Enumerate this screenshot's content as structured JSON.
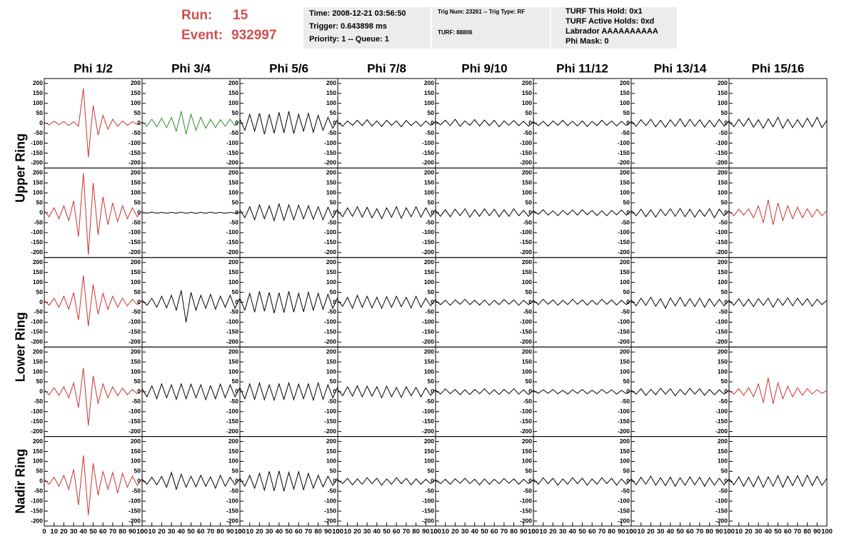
{
  "header": {
    "run_label": "Run:",
    "run": 15,
    "event_label": "Event:",
    "event": 932997
  },
  "info_boxes": [
    [
      "Time: 2008-12-21 03:56:50",
      "Trigger: 0.643898 ms",
      "Priority: 1 -- Queue: 1"
    ],
    [
      "Trig Num: 23261 -- Trig Type: RF",
      "TURF: 88806"
    ],
    [
      "TURF This Hold: 0x1",
      "TURF Active Holds: 0xd",
      "Labrador AAAAAAAAAA",
      "Phi Mask: 0"
    ]
  ],
  "chart_data": {
    "type": "line",
    "columns": [
      "Phi 1/2",
      "Phi 3/4",
      "Phi 5/6",
      "Phi 7/8",
      "Phi 9/10",
      "Phi 11/12",
      "Phi 13/14",
      "Phi 15/16"
    ],
    "row_labels": [
      "Upper Ring",
      "Lower Ring",
      "Nadir Ring"
    ],
    "x": [
      0,
      5,
      10,
      15,
      20,
      25,
      30,
      35,
      40,
      45,
      50,
      55,
      60,
      65,
      70,
      75,
      80,
      85,
      90,
      95,
      100
    ],
    "xlim": [
      0,
      100
    ],
    "xticks": [
      0,
      10,
      20,
      30,
      40,
      50,
      60,
      70,
      80,
      90,
      100
    ],
    "ylim": [
      -225,
      225
    ],
    "yticks": [
      -200,
      -150,
      -100,
      -50,
      0,
      50,
      100,
      150,
      200
    ],
    "panels": [
      [
        {
          "color": "#c8332f",
          "values": [
            5,
            -8,
            10,
            -7,
            9,
            -12,
            8,
            -15,
            175,
            -170,
            90,
            -60,
            40,
            -30,
            20,
            -15,
            12,
            -10,
            8,
            -6,
            5
          ]
        },
        {
          "color": "#2e8b2e",
          "values": [
            10,
            -15,
            20,
            -18,
            25,
            -22,
            30,
            -40,
            60,
            -55,
            45,
            -35,
            30,
            -25,
            20,
            -22,
            18,
            -15,
            20,
            -12,
            10
          ]
        },
        {
          "color": "#000000",
          "values": [
            20,
            -35,
            45,
            -40,
            50,
            -55,
            45,
            -50,
            55,
            -48,
            60,
            -52,
            45,
            -40,
            50,
            -45,
            40,
            -35,
            30,
            -25,
            20
          ]
        },
        {
          "color": "#000000",
          "values": [
            5,
            -15,
            12,
            -10,
            15,
            -12,
            18,
            -14,
            12,
            -16,
            15,
            -10,
            12,
            -18,
            14,
            -12,
            10,
            -15,
            12,
            -10,
            8
          ]
        },
        {
          "color": "#000000",
          "values": [
            10,
            -8,
            15,
            -12,
            20,
            -15,
            12,
            -10,
            18,
            -14,
            16,
            -12,
            15,
            -18,
            12,
            -10,
            14,
            -12,
            10,
            -15,
            8
          ]
        },
        {
          "color": "#000000",
          "values": [
            8,
            -12,
            10,
            -15,
            12,
            -10,
            15,
            -12,
            10,
            -14,
            12,
            -16,
            10,
            -12,
            15,
            -10,
            12,
            -14,
            10,
            -12,
            8
          ]
        },
        {
          "color": "#000000",
          "values": [
            10,
            -15,
            18,
            -12,
            20,
            -18,
            15,
            -20,
            18,
            -15,
            22,
            -18,
            20,
            -15,
            18,
            -20,
            15,
            -18,
            20,
            -15,
            12
          ]
        },
        {
          "color": "#000000",
          "values": [
            12,
            -18,
            20,
            -15,
            25,
            -20,
            18,
            -25,
            22,
            -18,
            30,
            -25,
            20,
            -22,
            18,
            -20,
            25,
            -18,
            30,
            -22,
            15
          ]
        }
      ],
      [
        {
          "color": "#c8332f",
          "values": [
            10,
            -20,
            25,
            -30,
            35,
            -40,
            60,
            -120,
            200,
            -210,
            150,
            -110,
            80,
            -60,
            50,
            -45,
            35,
            -30,
            25,
            -20,
            10
          ]
        },
        {
          "color": "#000000",
          "values": [
            2,
            -2,
            3,
            -2,
            2,
            -3,
            2,
            -2,
            3,
            -2,
            2,
            -3,
            2,
            -2,
            3,
            -2,
            2,
            -3,
            2,
            -2,
            2
          ]
        },
        {
          "color": "#000000",
          "values": [
            15,
            -25,
            30,
            -35,
            40,
            -30,
            35,
            -40,
            45,
            -38,
            40,
            -35,
            38,
            -30,
            35,
            -32,
            30,
            -35,
            28,
            -25,
            20
          ]
        },
        {
          "color": "#000000",
          "values": [
            10,
            -20,
            25,
            -18,
            30,
            -22,
            28,
            -25,
            20,
            -30,
            25,
            -22,
            30,
            -28,
            25,
            -20,
            30,
            -22,
            25,
            -20,
            15
          ]
        },
        {
          "color": "#000000",
          "values": [
            12,
            -18,
            15,
            -20,
            18,
            -15,
            20,
            -22,
            15,
            -18,
            20,
            -15,
            18,
            -20,
            15,
            -18,
            20,
            -15,
            12,
            -18,
            10
          ]
        },
        {
          "color": "#000000",
          "values": [
            10,
            -8,
            15,
            -12,
            10,
            -15,
            12,
            -10,
            14,
            -12,
            15,
            -10,
            12,
            -14,
            10,
            -15,
            12,
            -10,
            14,
            -12,
            8
          ]
        },
        {
          "color": "#000000",
          "values": [
            12,
            -15,
            18,
            -20,
            15,
            -22,
            18,
            -15,
            20,
            -18,
            22,
            -20,
            18,
            -22,
            15,
            -18,
            20,
            -25,
            18,
            -15,
            10
          ]
        },
        {
          "color": "#c8332f",
          "values": [
            10,
            -15,
            18,
            -12,
            20,
            -25,
            35,
            -50,
            65,
            -60,
            50,
            -40,
            35,
            -30,
            28,
            -25,
            20,
            -22,
            18,
            -15,
            12
          ]
        }
      ],
      [
        {
          "color": "#c8332f",
          "values": [
            10,
            -15,
            20,
            -25,
            30,
            -35,
            50,
            -90,
            135,
            -120,
            90,
            -60,
            45,
            -35,
            30,
            -25,
            20,
            -18,
            15,
            -12,
            10
          ]
        },
        {
          "color": "#000000",
          "values": [
            10,
            -15,
            20,
            -25,
            30,
            -28,
            35,
            -40,
            60,
            -100,
            50,
            -40,
            35,
            -30,
            40,
            -35,
            30,
            -25,
            35,
            -30,
            20
          ]
        },
        {
          "color": "#000000",
          "values": [
            20,
            -40,
            45,
            -50,
            55,
            -45,
            50,
            -55,
            48,
            -52,
            55,
            -50,
            45,
            -48,
            50,
            -40,
            45,
            -35,
            40,
            -30,
            25
          ]
        },
        {
          "color": "#000000",
          "values": [
            10,
            -20,
            25,
            -30,
            35,
            -25,
            30,
            -28,
            25,
            -30,
            28,
            -25,
            30,
            -22,
            25,
            -28,
            30,
            -25,
            20,
            -18,
            15
          ]
        },
        {
          "color": "#000000",
          "values": [
            8,
            -12,
            10,
            -15,
            12,
            -10,
            15,
            -12,
            10,
            -14,
            12,
            -15,
            10,
            -12,
            14,
            -10,
            12,
            -15,
            10,
            -12,
            8
          ]
        },
        {
          "color": "#000000",
          "values": [
            10,
            -12,
            15,
            -10,
            12,
            -15,
            10,
            -12,
            15,
            -10,
            12,
            -14,
            10,
            -12,
            15,
            -10,
            12,
            -14,
            10,
            -12,
            8
          ]
        },
        {
          "color": "#000000",
          "values": [
            12,
            -18,
            20,
            -15,
            25,
            -20,
            18,
            -30,
            22,
            -18,
            25,
            -20,
            18,
            -22,
            20,
            -25,
            18,
            -20,
            15,
            -18,
            10
          ]
        },
        {
          "color": "#000000",
          "values": [
            10,
            -15,
            18,
            -20,
            15,
            -22,
            18,
            -15,
            20,
            -25,
            18,
            -15,
            22,
            -18,
            20,
            -15,
            18,
            -20,
            15,
            -12,
            10
          ]
        }
      ],
      [
        {
          "color": "#c8332f",
          "values": [
            10,
            -15,
            20,
            -18,
            25,
            -30,
            45,
            -80,
            120,
            -170,
            80,
            -60,
            40,
            -30,
            25,
            -20,
            18,
            -15,
            12,
            -10,
            8
          ]
        },
        {
          "color": "#000000",
          "values": [
            15,
            -25,
            30,
            -35,
            40,
            -30,
            35,
            -38,
            40,
            -35,
            38,
            -30,
            35,
            -40,
            30,
            -35,
            38,
            -30,
            35,
            -25,
            20
          ]
        },
        {
          "color": "#000000",
          "values": [
            20,
            -35,
            40,
            -38,
            45,
            -40,
            35,
            -42,
            40,
            -38,
            45,
            -40,
            38,
            -35,
            40,
            -42,
            45,
            -38,
            35,
            -30,
            25
          ]
        },
        {
          "color": "#000000",
          "values": [
            12,
            -20,
            25,
            -22,
            30,
            -25,
            28,
            -22,
            25,
            -30,
            28,
            -25,
            22,
            -28,
            25,
            -20,
            22,
            -25,
            20,
            -18,
            12
          ]
        },
        {
          "color": "#000000",
          "values": [
            8,
            -12,
            15,
            -10,
            12,
            -15,
            10,
            -14,
            12,
            -10,
            15,
            -12,
            10,
            -14,
            12,
            -10,
            15,
            -12,
            10,
            -14,
            8
          ]
        },
        {
          "color": "#000000",
          "values": [
            6,
            -8,
            10,
            -8,
            12,
            -10,
            8,
            -12,
            10,
            -8,
            12,
            -10,
            8,
            -10,
            12,
            -8,
            10,
            -12,
            8,
            -10,
            6
          ]
        },
        {
          "color": "#000000",
          "values": [
            8,
            -12,
            15,
            -18,
            12,
            -15,
            18,
            -12,
            15,
            -20,
            12,
            -15,
            18,
            -12,
            15,
            -18,
            12,
            -15,
            10,
            -12,
            8
          ]
        },
        {
          "color": "#c8332f",
          "values": [
            8,
            -12,
            15,
            -18,
            20,
            -25,
            40,
            -55,
            70,
            -60,
            45,
            -35,
            28,
            -25,
            20,
            -18,
            15,
            -12,
            10,
            -8,
            6
          ]
        }
      ],
      [
        {
          "color": "#c8332f",
          "values": [
            10,
            -15,
            20,
            -25,
            30,
            -40,
            60,
            -120,
            130,
            -170,
            90,
            -70,
            50,
            -40,
            45,
            -60,
            40,
            -30,
            25,
            -20,
            12
          ]
        },
        {
          "color": "#000000",
          "values": [
            10,
            -15,
            20,
            -18,
            25,
            -30,
            45,
            -40,
            35,
            -30,
            25,
            -28,
            30,
            -25,
            22,
            -35,
            30,
            -25,
            20,
            -18,
            12
          ]
        },
        {
          "color": "#000000",
          "values": [
            15,
            -25,
            30,
            -35,
            40,
            -45,
            50,
            -48,
            52,
            -50,
            45,
            -40,
            48,
            -42,
            40,
            -35,
            30,
            -28,
            25,
            -20,
            15
          ]
        },
        {
          "color": "#000000",
          "values": [
            8,
            -12,
            15,
            -18,
            12,
            -15,
            18,
            -12,
            15,
            -20,
            12,
            -15,
            18,
            -12,
            15,
            -18,
            12,
            -15,
            10,
            -12,
            8
          ]
        },
        {
          "color": "#000000",
          "values": [
            8,
            -12,
            10,
            -15,
            12,
            -10,
            15,
            -12,
            10,
            -18,
            12,
            -15,
            10,
            -12,
            14,
            -10,
            12,
            -15,
            10,
            -12,
            8
          ]
        },
        {
          "color": "#000000",
          "values": [
            10,
            -15,
            18,
            -12,
            15,
            -20,
            12,
            -15,
            18,
            -12,
            15,
            -20,
            12,
            -15,
            18,
            -12,
            15,
            -20,
            12,
            -15,
            10
          ]
        },
        {
          "color": "#000000",
          "values": [
            12,
            -18,
            20,
            -15,
            25,
            -20,
            18,
            -22,
            20,
            -25,
            18,
            -20,
            22,
            -18,
            20,
            -25,
            18,
            -20,
            15,
            -18,
            10
          ]
        },
        {
          "color": "#000000",
          "values": [
            12,
            -18,
            22,
            -25,
            20,
            -28,
            25,
            -30,
            22,
            -25,
            28,
            -30,
            25,
            -22,
            28,
            -25,
            30,
            -22,
            25,
            -20,
            15
          ]
        }
      ]
    ]
  }
}
